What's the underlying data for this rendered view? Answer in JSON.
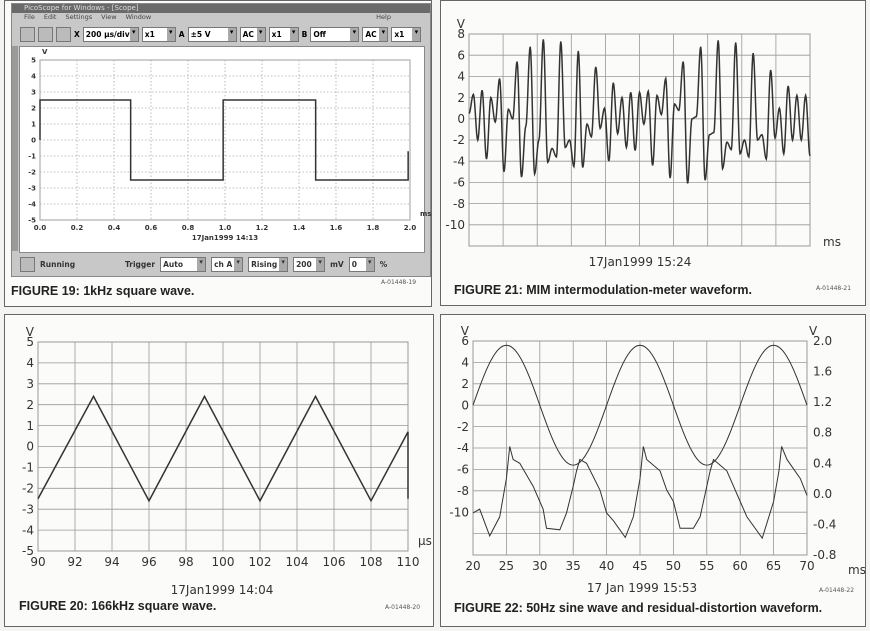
{
  "figures": {
    "fig19": {
      "caption": "FIGURE 19: 1kHz square wave.",
      "ref": "A-01448-19",
      "window_title": "PicoScope for Windows - [Scope]",
      "menu": [
        "File",
        "Edit",
        "Settings",
        "View",
        "Window"
      ],
      "menu_right": "Help",
      "toolbar": {
        "x_label": "X",
        "timebase": "200 µs/div",
        "x_mult": "x1",
        "a_label": "A",
        "a_range": "±5 V",
        "a_coupling": "AC",
        "a_mult": "x1",
        "b_label": "B",
        "b_range": "Off",
        "b_coupling": "AC",
        "b_mult": "x1"
      },
      "status": {
        "state": "Running",
        "trigger_label": "Trigger",
        "trigger_mode": "Auto",
        "channel": "ch A",
        "edge": "Rising",
        "level": "200",
        "level_unit": "mV",
        "delay": "0",
        "delay_unit": "%"
      },
      "date": "17Jan1999  14:13"
    },
    "fig20": {
      "caption": "FIGURE 20: 166kHz square wave.",
      "ref": "A-01448-20",
      "date": "17Jan1999  14:04"
    },
    "fig21": {
      "caption": "FIGURE 21: MIM intermodulation-meter waveform.",
      "ref": "A-01448-21",
      "date": "17Jan1999  15:24"
    },
    "fig22": {
      "caption": "FIGURE 22: 50Hz sine wave and residual-distortion waveform.",
      "ref": "A-01448-22",
      "date": "17 Jan 1999  15:53"
    }
  },
  "chart_data": [
    {
      "id": "fig19",
      "type": "line",
      "ylabel": "V",
      "xlabel": "ms",
      "xlim": [
        0,
        2
      ],
      "ylim": [
        -5,
        5
      ],
      "grid": "dotted",
      "xticks": [
        "0.0",
        "0.2",
        "0.4",
        "0.6",
        "0.8",
        "1.0",
        "1.2",
        "1.4",
        "1.6",
        "1.8",
        "2.0"
      ],
      "yticks": [
        "5",
        "4",
        "3",
        "2",
        "1",
        "0",
        "-1",
        "-2",
        "-3",
        "-4",
        "-5"
      ],
      "series": [
        {
          "points": [
            [
              0,
              0
            ],
            [
              0,
              2.5
            ],
            [
              0.49,
              2.5
            ],
            [
              0.49,
              -2.5
            ],
            [
              0.99,
              -2.5
            ],
            [
              0.99,
              2.5
            ],
            [
              1.49,
              2.5
            ],
            [
              1.49,
              -2.5
            ],
            [
              1.99,
              -2.5
            ],
            [
              1.99,
              -0.7
            ]
          ]
        }
      ]
    },
    {
      "id": "fig20",
      "type": "line",
      "ylabel": "V",
      "xlabel": "µs",
      "xlim": [
        90,
        110
      ],
      "ylim": [
        -5,
        5
      ],
      "grid": true,
      "xticks": [
        "90",
        "92",
        "94",
        "96",
        "98",
        "100",
        "102",
        "104",
        "106",
        "108",
        "110"
      ],
      "yticks": [
        "5",
        "4",
        "3",
        "2",
        "1",
        "0",
        "-1",
        "-2",
        "-3",
        "-4",
        "-5"
      ],
      "series": [
        {
          "points": [
            [
              90,
              -2.5
            ],
            [
              93,
              2.4
            ],
            [
              96,
              -2.6
            ],
            [
              99,
              2.4
            ],
            [
              102,
              -2.6
            ],
            [
              105,
              2.4
            ],
            [
              108,
              -2.6
            ],
            [
              110,
              0.7
            ],
            [
              110,
              -2.5
            ]
          ]
        }
      ]
    },
    {
      "id": "fig21",
      "type": "line",
      "ylabel": "V",
      "xlabel": "ms",
      "ylim": [
        -12,
        8
      ],
      "grid": true,
      "x_divisions": 10,
      "yticks": [
        "8",
        "6",
        "4",
        "2",
        "0",
        "-2",
        "-4",
        "-6",
        "-8",
        "-10"
      ],
      "series": [
        {
          "extrema": [
            0.5,
            2.3,
            -2,
            2.7,
            -3.8,
            2,
            -0.3,
            3.8,
            -5,
            0.9,
            0,
            5.4,
            -5.5,
            -0.7,
            6.8,
            -5.2,
            -2,
            7.5,
            -4.1,
            -2.8,
            -3.6,
            7.3,
            -2.7,
            -2,
            -4.5,
            6.4,
            -4.6,
            -0.5,
            -1.7,
            4.9,
            -0.9,
            1,
            -4,
            3.4,
            -1.4,
            2,
            -2.7,
            2.5,
            -3,
            2.5,
            -0.5,
            2.6,
            -4.4,
            2.2,
            0.4,
            3.8,
            -5.6,
            1.4,
            0.8,
            5.4,
            -6.1,
            0,
            0.2,
            6.8,
            -5.8,
            -1.5,
            -1.3,
            7.4,
            -4.7,
            -2.2,
            -2.9,
            7.2,
            -3.3,
            -2,
            -3.6,
            6.2,
            -2,
            -1.5,
            -3.8,
            4.6,
            -1.8,
            1,
            -3.3,
            3.1,
            -2,
            2.2,
            -2,
            2.2,
            -3.5
          ]
        }
      ]
    },
    {
      "id": "fig22",
      "type": "line",
      "ylabel": "V",
      "ylabel_right": "V",
      "xlabel": "ms",
      "xlim": [
        20,
        70
      ],
      "ylim": [
        -14,
        6
      ],
      "ylim_right": [
        -0.8,
        2.0
      ],
      "grid": true,
      "xticks": [
        "20",
        "25",
        "30",
        "35",
        "40",
        "45",
        "50",
        "55",
        "60",
        "65",
        "70"
      ],
      "yticks": [
        "6",
        "4",
        "2",
        "0",
        "-2",
        "-4",
        "-6",
        "-8",
        "-10"
      ],
      "yticks_right": [
        "2.0",
        "1.6",
        "1.2",
        "0.8",
        "0.4",
        "0.0",
        "-0.4",
        "-0.8"
      ],
      "series": [
        {
          "axis": "left",
          "function": "sine",
          "amplitude": 5.6,
          "frequency_hz": 50,
          "start_ms": 20
        },
        {
          "axis": "right",
          "points": [
            [
              20,
              -0.25
            ],
            [
              21,
              -0.2
            ],
            [
              22.5,
              -0.55
            ],
            [
              24,
              -0.3
            ],
            [
              25,
              0.2
            ],
            [
              25.5,
              0.62
            ],
            [
              26,
              0.45
            ],
            [
              27,
              0.4
            ],
            [
              29,
              0.1
            ],
            [
              30,
              -0.1
            ],
            [
              30.5,
              -0.2
            ],
            [
              31,
              -0.45
            ],
            [
              33,
              -0.47
            ],
            [
              34,
              -0.25
            ],
            [
              35,
              0.1
            ],
            [
              35.5,
              0.3
            ],
            [
              36,
              0.45
            ],
            [
              37,
              0.4
            ],
            [
              39,
              0.05
            ],
            [
              40,
              -0.25
            ],
            [
              41,
              -0.35
            ],
            [
              42.8,
              -0.57
            ],
            [
              44,
              -0.3
            ],
            [
              45,
              0.2
            ],
            [
              45.5,
              0.62
            ],
            [
              46,
              0.45
            ],
            [
              48,
              0.3
            ],
            [
              49,
              0.05
            ],
            [
              50,
              -0.1
            ],
            [
              51,
              -0.45
            ],
            [
              53,
              -0.45
            ],
            [
              54,
              -0.3
            ],
            [
              55,
              0.1
            ],
            [
              55.5,
              0.3
            ],
            [
              56,
              0.45
            ],
            [
              58,
              0.3
            ],
            [
              60,
              -0.1
            ],
            [
              61,
              -0.3
            ],
            [
              63.3,
              -0.58
            ],
            [
              65,
              -0.1
            ],
            [
              65.8,
              0.3
            ],
            [
              66.2,
              0.62
            ],
            [
              67,
              0.45
            ],
            [
              69,
              0.2
            ],
            [
              70,
              -0.02
            ]
          ]
        }
      ]
    }
  ]
}
